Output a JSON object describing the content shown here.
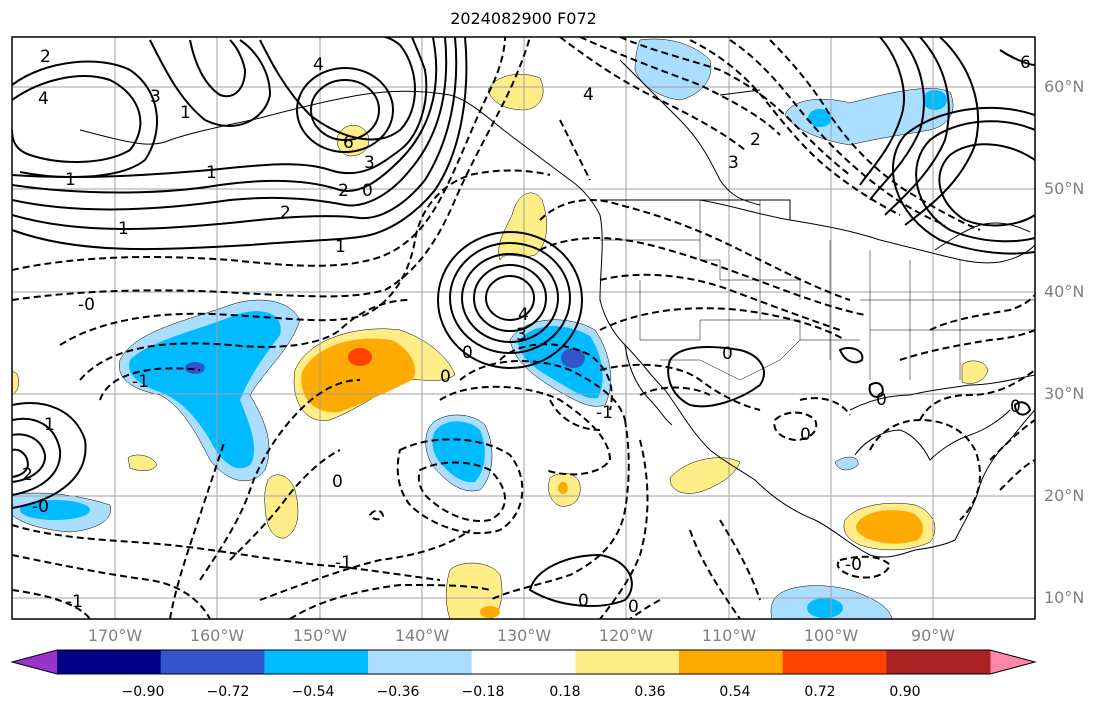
{
  "title": "2024082900 F072",
  "map": {
    "lat_labels": [
      "60°N",
      "50°N",
      "40°N",
      "30°N",
      "20°N",
      "10°N"
    ],
    "lon_labels": [
      "170°W",
      "160°W",
      "150°W",
      "140°W",
      "130°W",
      "120°W",
      "110°W",
      "100°W",
      "90°W"
    ],
    "contour_labels": [
      "2",
      "4",
      "3",
      "1",
      "4",
      "6",
      "3",
      "2",
      "0",
      "1",
      "-0",
      "2",
      "1",
      "4",
      "3",
      "1",
      "0",
      "-1",
      "2",
      "3",
      "4",
      "6",
      "-0",
      "0",
      "-1",
      "0",
      "1",
      "2",
      "-1",
      "-1",
      "0",
      "1",
      "0",
      "0",
      "0",
      "0",
      "-0",
      "0"
    ],
    "fill_colors": {
      "neg_strong": "#3355cc",
      "neg_mid": "#00bbff",
      "neg_light": "#aaddff",
      "pos_light": "#ffee88",
      "pos_mid": "#ffaa00",
      "pos_strong": "#ff4400"
    }
  },
  "colorbar": {
    "colors": [
      "#9933cc",
      "#000088",
      "#3355cc",
      "#00bbff",
      "#aaddff",
      "#ffffff",
      "#ffee88",
      "#ffaa00",
      "#ff4400",
      "#aa2222",
      "#ff88aa"
    ],
    "ticks": [
      "−0.90",
      "−0.72",
      "−0.54",
      "−0.36",
      "−0.18",
      "0.18",
      "0.36",
      "0.54",
      "0.72",
      "0.90"
    ]
  }
}
